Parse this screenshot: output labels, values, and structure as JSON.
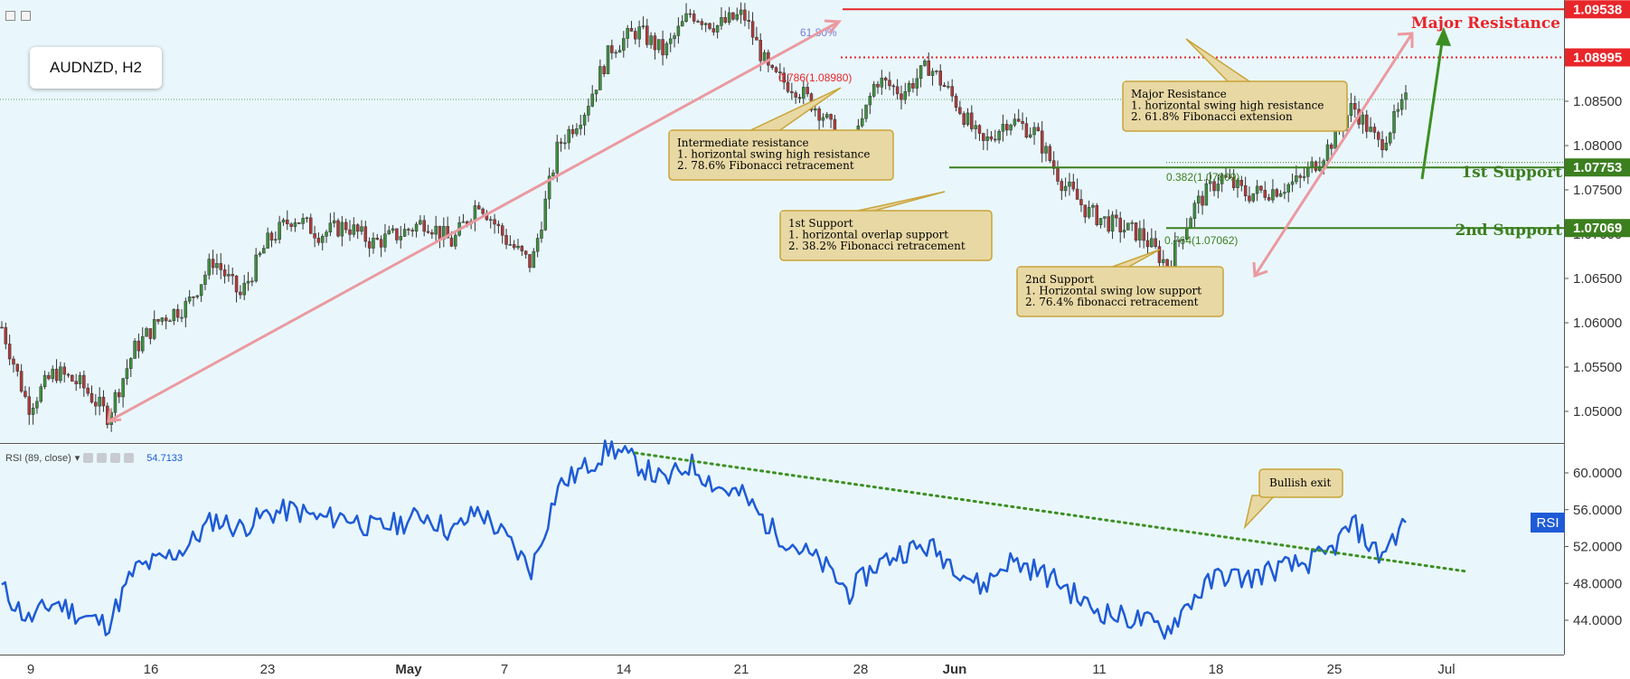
{
  "symbol": "AUDNZD, H2",
  "colors": {
    "bg": "#e9f7fc",
    "candle_up": "#3f8f3f",
    "candle_down": "#b03a3a",
    "resistance": "#e8262a",
    "support": "#3c7f1f",
    "trend_pink": "#ea9aa0",
    "rsi_line": "#1f5bd6",
    "rsi_trend": "#3c8f22",
    "callout_fill": "#e8d8a4",
    "callout_stroke": "#c9a43a",
    "arrow_green": "#3c8f22"
  },
  "chart_data": [
    {
      "type": "candlestick",
      "name": "price",
      "symbol": "AUDNZD",
      "timeframe": "H2",
      "ylim": [
        1.0455,
        1.0965
      ],
      "x_ticks": [
        "9",
        "16",
        "23",
        "May",
        "7",
        "14",
        "21",
        "28",
        "Jun",
        "11",
        "18",
        "25",
        "Jul"
      ],
      "y_ticks": [
        "1.05000",
        "1.05500",
        "1.06000",
        "1.06500",
        "1.07000",
        "1.07500",
        "1.08000",
        "1.08500"
      ],
      "price_path": [
        [
          0,
          1.0595
        ],
        [
          1,
          1.0505
        ],
        [
          2,
          1.0545
        ],
        [
          3,
          1.053
        ],
        [
          4,
          1.0495
        ],
        [
          5,
          1.057
        ],
        [
          6,
          1.0605
        ],
        [
          7,
          1.062
        ],
        [
          8,
          1.0672
        ],
        [
          9,
          1.063
        ],
        [
          10,
          1.069
        ],
        [
          11,
          1.072
        ],
        [
          12,
          1.07
        ],
        [
          13,
          1.071
        ],
        [
          14,
          1.069
        ],
        [
          15,
          1.07
        ],
        [
          16,
          1.0715
        ],
        [
          17,
          1.069
        ],
        [
          18,
          1.0738
        ],
        [
          19,
          1.0695
        ],
        [
          20,
          1.0665
        ],
        [
          21,
          1.08
        ],
        [
          22,
          1.084
        ],
        [
          23,
          1.091
        ],
        [
          24,
          1.093
        ],
        [
          25,
          1.0905
        ],
        [
          26,
          1.095
        ],
        [
          27,
          1.0935
        ],
        [
          28,
          1.0948
        ],
        [
          29,
          1.088
        ],
        [
          30,
          1.0865
        ],
        [
          31,
          1.0835
        ],
        [
          32,
          1.0782
        ],
        [
          33,
          1.0875
        ],
        [
          34,
          1.086
        ],
        [
          35,
          1.089
        ],
        [
          36,
          1.085
        ],
        [
          37,
          1.08
        ],
        [
          38,
          1.083
        ],
        [
          39,
          1.0815
        ],
        [
          40,
          1.076
        ],
        [
          41,
          1.0725
        ],
        [
          42,
          1.071
        ],
        [
          43,
          1.07
        ],
        [
          44,
          1.0665
        ],
        [
          45,
          1.073
        ],
        [
          46,
          1.0765
        ],
        [
          47,
          1.0745
        ],
        [
          48,
          1.075
        ],
        [
          49,
          1.076
        ],
        [
          50,
          1.0795
        ],
        [
          51,
          1.0845
        ],
        [
          52,
          1.08
        ],
        [
          53,
          1.085
        ]
      ],
      "levels": [
        {
          "name": "Major Resistance",
          "value": 1.09538,
          "label": "1.09538"
        },
        {
          "name": "Resistance",
          "value": 1.08995,
          "label": "1.08995"
        },
        {
          "name": "1st Support",
          "value": 1.07753,
          "label": "1.07753"
        },
        {
          "name": "2nd Support",
          "value": 1.07069,
          "label": "1.07069"
        }
      ],
      "current_price": 1.0852,
      "fib_labels": {
        "fib618": "61.80%",
        "fib786": "0.786(1.08980)",
        "fib382": "0.382(1.07809)",
        "fib764": "0.764(1.07062)"
      },
      "level_titles": {
        "major_resistance": "Major Resistance",
        "first_support": "1st Support",
        "second_support": "2nd Support"
      },
      "callouts": [
        {
          "id": "intermediate",
          "lines": [
            "Intermediate resistance",
            "1. horizontal swing high resistance",
            "2. 78.6% Fibonacci retracement"
          ]
        },
        {
          "id": "first-support",
          "lines": [
            "1st Support",
            "1. horizontal overlap support",
            "2. 38.2% Fibonacci retracement"
          ]
        },
        {
          "id": "major-resistance",
          "lines": [
            "Major Resistance",
            "1. horizontal swing high resistance",
            "2. 61.8% Fibonacci extension"
          ]
        },
        {
          "id": "second-support",
          "lines": [
            "2nd Support",
            "1. Horizontal swing low support",
            "2. 76.4% fibonacci retracement"
          ]
        }
      ]
    },
    {
      "type": "line",
      "name": "RSI",
      "indicator_label": "RSI (89, close)",
      "current_value": "54.7133",
      "badge": "RSI",
      "ylim": [
        40.5,
        63.5
      ],
      "y_ticks": [
        "44.0000",
        "48.0000",
        "52.0000",
        "56.0000",
        "60.0000"
      ],
      "path": [
        [
          0,
          47.5
        ],
        [
          1,
          44.0
        ],
        [
          2,
          46.0
        ],
        [
          3,
          44.5
        ],
        [
          4,
          43.5
        ],
        [
          5,
          49.5
        ],
        [
          6,
          50.5
        ],
        [
          7,
          52.0
        ],
        [
          8,
          55.0
        ],
        [
          9,
          54.0
        ],
        [
          10,
          55.5
        ],
        [
          11,
          56.0
        ],
        [
          12,
          55.0
        ],
        [
          13,
          55.3
        ],
        [
          14,
          54.0
        ],
        [
          15,
          54.5
        ],
        [
          16,
          55.5
        ],
        [
          17,
          53.5
        ],
        [
          18,
          56.0
        ],
        [
          19,
          53.0
        ],
        [
          20,
          49.5
        ],
        [
          21,
          58.5
        ],
        [
          22,
          60.5
        ],
        [
          23,
          62.8
        ],
        [
          24,
          61.0
        ],
        [
          25,
          59.0
        ],
        [
          26,
          61.0
        ],
        [
          27,
          58.5
        ],
        [
          28,
          57.5
        ],
        [
          29,
          54.0
        ],
        [
          30,
          52.0
        ],
        [
          31,
          50.0
        ],
        [
          32,
          47.0
        ],
        [
          33,
          50.0
        ],
        [
          34,
          51.5
        ],
        [
          35,
          52.0
        ],
        [
          36,
          50.0
        ],
        [
          37,
          47.5
        ],
        [
          38,
          50.5
        ],
        [
          39,
          49.5
        ],
        [
          40,
          48.0
        ],
        [
          41,
          45.5
        ],
        [
          42,
          44.5
        ],
        [
          43,
          44.0
        ],
        [
          44,
          43.0
        ],
        [
          45,
          46.5
        ],
        [
          46,
          49.0
        ],
        [
          47,
          48.5
        ],
        [
          48,
          49.5
        ],
        [
          49,
          50.0
        ],
        [
          50,
          51.0
        ],
        [
          51,
          54.5
        ],
        [
          52,
          51.0
        ],
        [
          53,
          54.7
        ]
      ],
      "trendline_note": "Bullish exit"
    }
  ]
}
